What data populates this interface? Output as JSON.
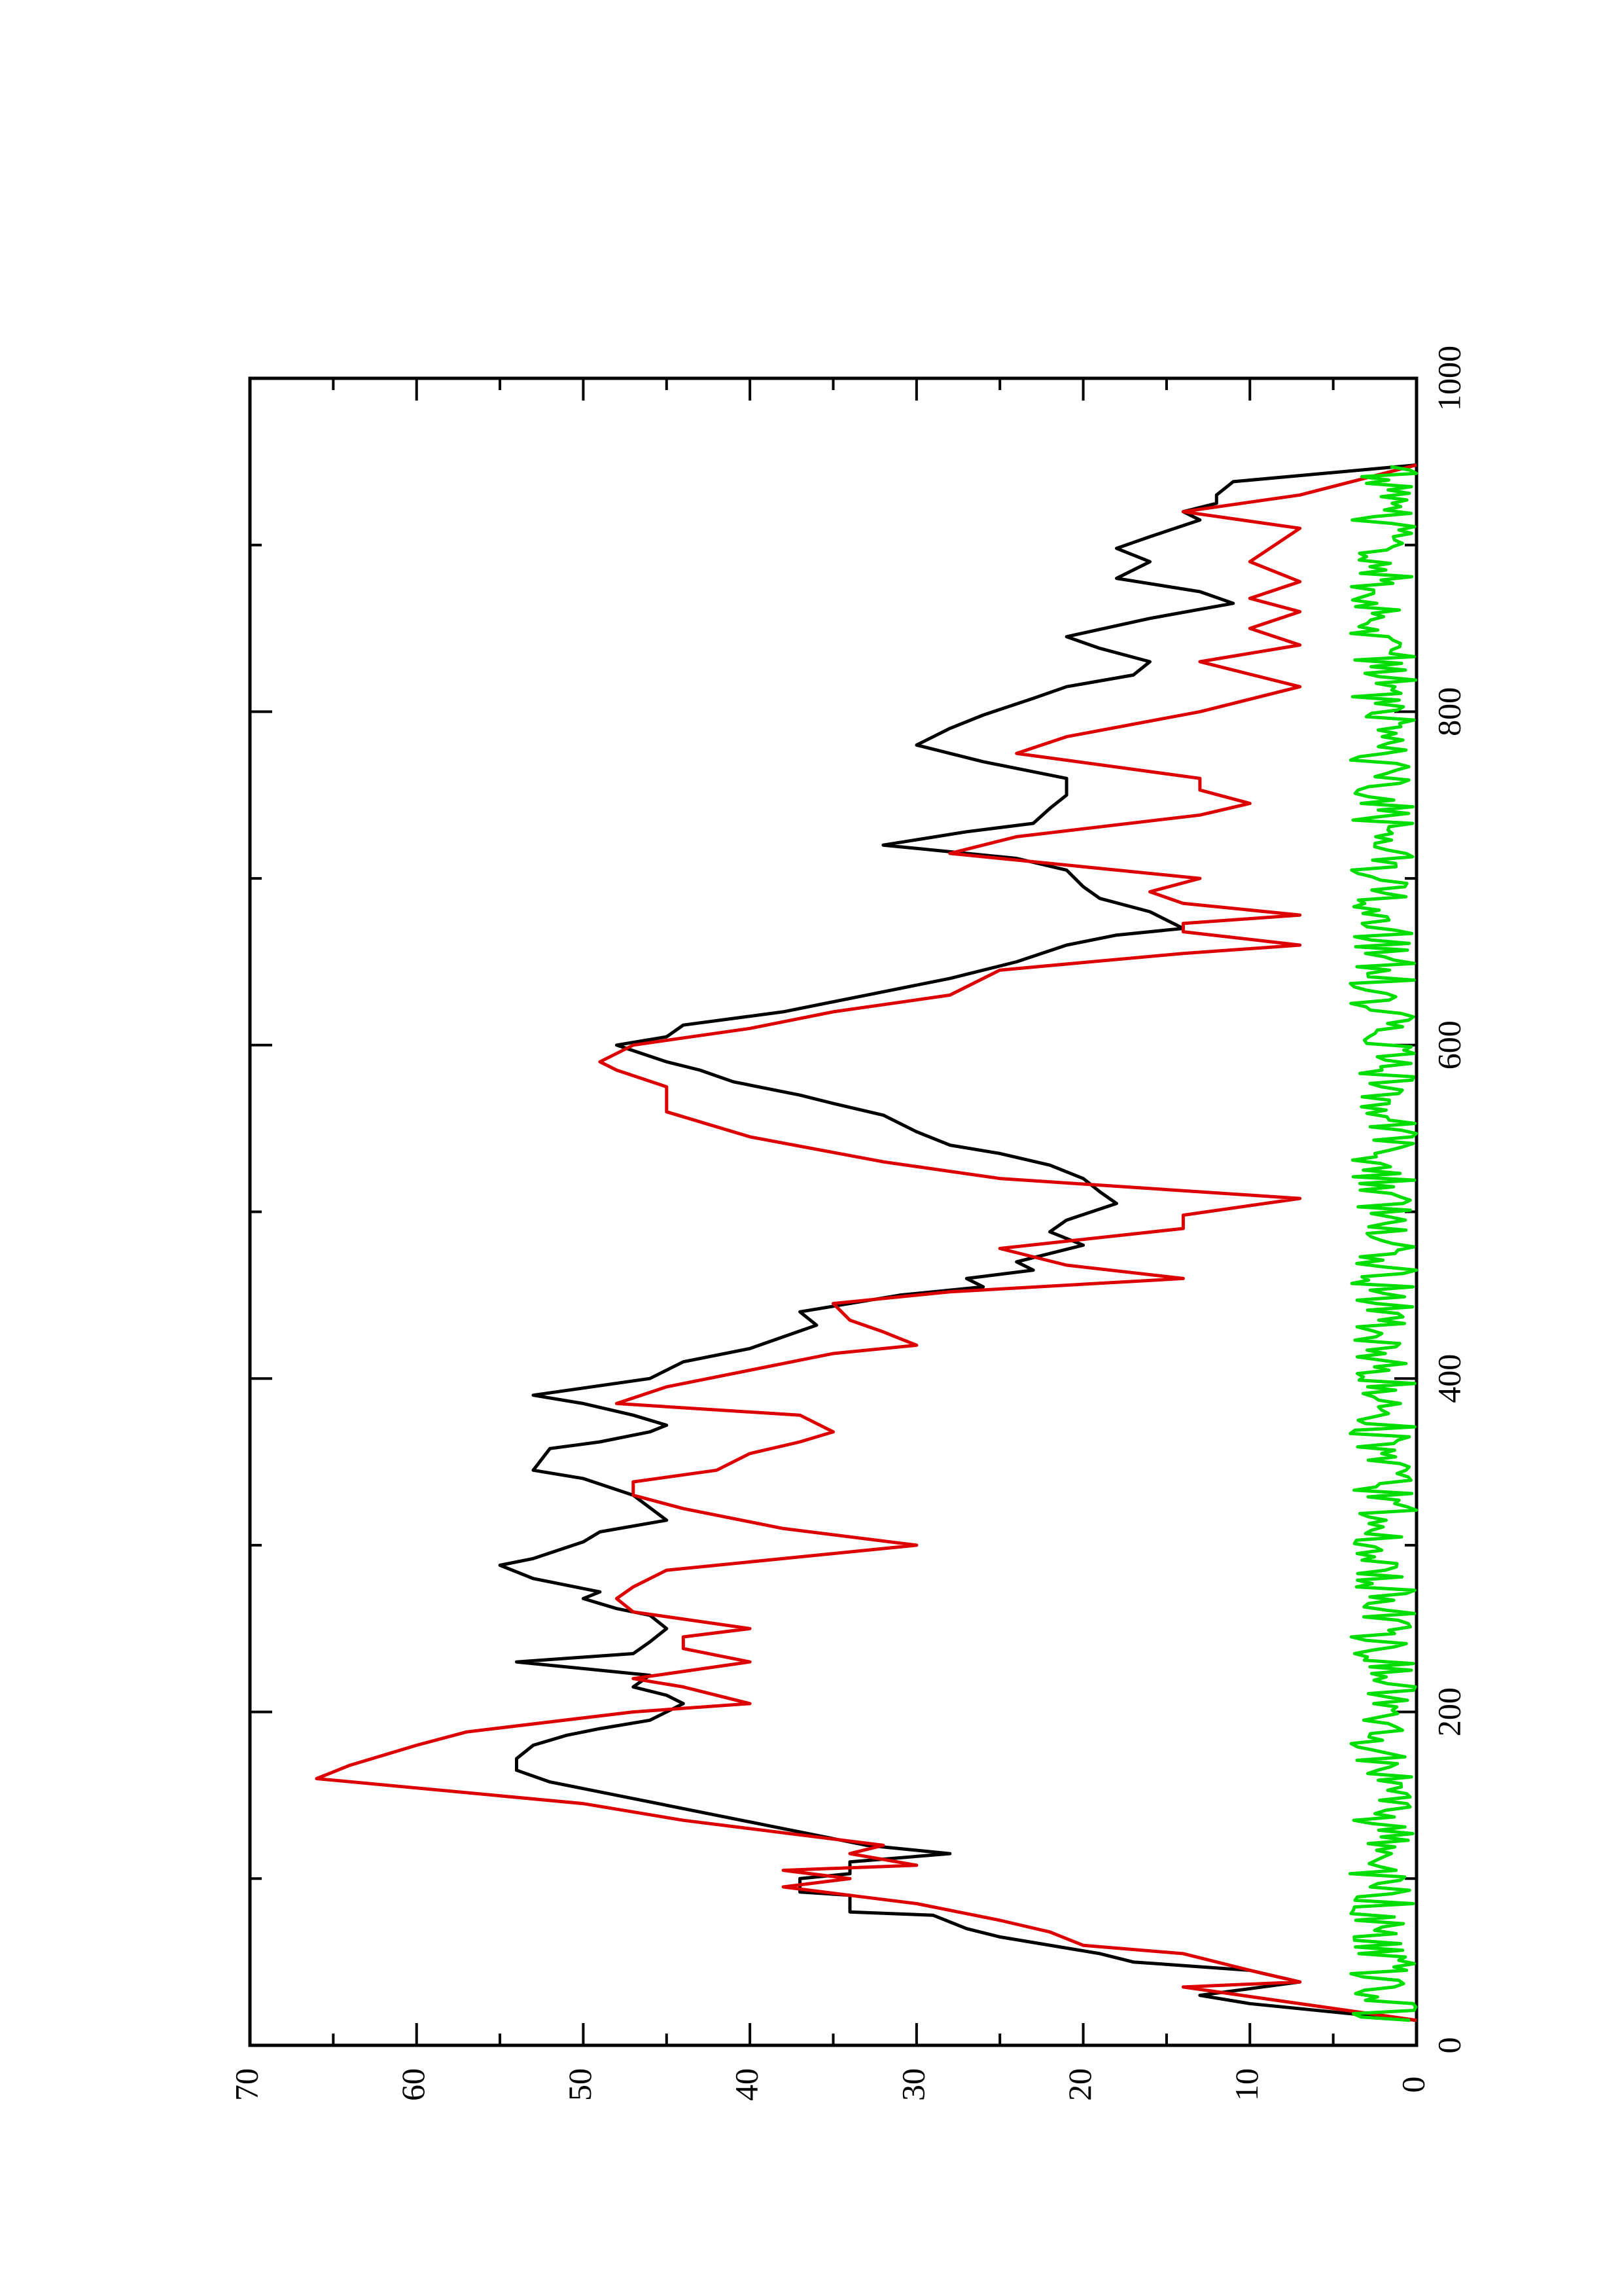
{
  "chart_data": {
    "type": "line",
    "title": "",
    "xlabel": "",
    "ylabel": "",
    "xlim": [
      0,
      1000
    ],
    "ylim": [
      0,
      70
    ],
    "x_ticks": [
      0,
      200,
      400,
      600,
      800,
      1000
    ],
    "y_ticks": [
      0,
      10,
      20,
      30,
      40,
      50,
      60,
      70
    ],
    "x_tick_labels": [
      "0",
      "200",
      "400",
      "600",
      "800",
      "1000"
    ],
    "y_tick_labels": [
      "0",
      "10",
      "20",
      "30",
      "40",
      "50",
      "60",
      "70"
    ],
    "grid": false,
    "legend": "none",
    "orientation": "rotated-90-counterclockwise",
    "series": [
      {
        "color": "#000000",
        "points": [
          [
            15,
            0
          ],
          [
            25,
            10
          ],
          [
            30,
            13
          ],
          [
            38,
            7
          ],
          [
            45,
            10
          ],
          [
            50,
            17
          ],
          [
            55,
            19
          ],
          [
            65,
            25
          ],
          [
            70,
            27
          ],
          [
            78,
            29
          ],
          [
            80,
            34
          ],
          [
            90,
            34
          ],
          [
            92,
            37
          ],
          [
            100,
            37
          ],
          [
            103,
            34
          ],
          [
            110,
            34
          ],
          [
            115,
            28
          ],
          [
            120,
            33
          ],
          [
            130,
            38
          ],
          [
            140,
            43
          ],
          [
            150,
            48
          ],
          [
            158,
            52
          ],
          [
            165,
            54
          ],
          [
            172,
            54
          ],
          [
            180,
            53
          ],
          [
            186,
            51
          ],
          [
            190,
            49
          ],
          [
            195,
            46
          ],
          [
            205,
            44
          ],
          [
            210,
            45
          ],
          [
            215,
            47
          ],
          [
            222,
            46
          ],
          [
            230,
            54
          ],
          [
            235,
            47
          ],
          [
            242,
            46
          ],
          [
            250,
            45
          ],
          [
            258,
            46
          ],
          [
            262,
            48
          ],
          [
            268,
            50
          ],
          [
            272,
            49
          ],
          [
            280,
            53
          ],
          [
            288,
            55
          ],
          [
            292,
            53
          ],
          [
            302,
            50
          ],
          [
            308,
            49
          ],
          [
            315,
            45
          ],
          [
            330,
            47
          ],
          [
            340,
            50
          ],
          [
            345,
            53
          ],
          [
            358,
            52
          ],
          [
            362,
            49
          ],
          [
            368,
            46
          ],
          [
            372,
            45
          ],
          [
            378,
            47
          ],
          [
            385,
            50
          ],
          [
            390,
            53
          ],
          [
            400,
            46
          ],
          [
            410,
            44
          ],
          [
            418,
            40
          ],
          [
            425,
            38
          ],
          [
            432,
            36
          ],
          [
            440,
            37
          ],
          [
            450,
            31
          ],
          [
            455,
            26
          ],
          [
            460,
            27
          ],
          [
            465,
            23
          ],
          [
            470,
            24
          ],
          [
            480,
            20
          ],
          [
            488,
            22
          ],
          [
            495,
            21
          ],
          [
            505,
            18
          ],
          [
            512,
            19
          ],
          [
            520,
            20
          ],
          [
            528,
            22
          ],
          [
            535,
            25
          ],
          [
            540,
            28
          ],
          [
            548,
            30
          ],
          [
            558,
            32
          ],
          [
            565,
            35
          ],
          [
            570,
            37
          ],
          [
            578,
            41
          ],
          [
            585,
            43
          ],
          [
            590,
            45
          ],
          [
            600,
            48
          ],
          [
            605,
            45
          ],
          [
            612,
            44
          ],
          [
            620,
            38
          ],
          [
            630,
            33
          ],
          [
            640,
            28
          ],
          [
            650,
            24
          ],
          [
            660,
            21
          ],
          [
            666,
            18
          ],
          [
            670,
            14
          ],
          [
            680,
            16
          ],
          [
            688,
            19
          ],
          [
            695,
            20
          ],
          [
            705,
            21
          ],
          [
            712,
            24
          ],
          [
            720,
            32
          ],
          [
            728,
            27
          ],
          [
            733,
            23
          ],
          [
            742,
            22
          ],
          [
            750,
            21
          ],
          [
            760,
            21
          ],
          [
            770,
            26
          ],
          [
            780,
            30
          ],
          [
            790,
            28
          ],
          [
            798,
            26
          ],
          [
            808,
            23
          ],
          [
            815,
            21
          ],
          [
            822,
            17
          ],
          [
            830,
            16
          ],
          [
            838,
            19
          ],
          [
            845,
            21
          ],
          [
            856,
            16
          ],
          [
            865,
            11
          ],
          [
            872,
            13
          ],
          [
            880,
            18
          ],
          [
            890,
            16
          ],
          [
            898,
            18
          ],
          [
            905,
            16
          ],
          [
            915,
            13
          ],
          [
            920,
            14
          ],
          [
            925,
            12
          ],
          [
            930,
            12
          ],
          [
            938,
            11
          ],
          [
            948,
            0
          ]
        ]
      },
      {
        "color": "#dd0000",
        "points": [
          [
            15,
            0
          ],
          [
            35,
            14
          ],
          [
            38,
            7
          ],
          [
            45,
            10
          ],
          [
            55,
            14
          ],
          [
            60,
            20
          ],
          [
            68,
            22
          ],
          [
            75,
            25
          ],
          [
            85,
            30
          ],
          [
            90,
            34
          ],
          [
            95,
            38
          ],
          [
            100,
            34
          ],
          [
            105,
            38
          ],
          [
            108,
            30
          ],
          [
            115,
            34
          ],
          [
            120,
            32
          ],
          [
            135,
            44
          ],
          [
            145,
            50
          ],
          [
            160,
            66
          ],
          [
            168,
            64
          ],
          [
            180,
            60
          ],
          [
            188,
            57
          ],
          [
            200,
            47
          ],
          [
            205,
            40
          ],
          [
            215,
            44
          ],
          [
            220,
            47
          ],
          [
            230,
            40
          ],
          [
            238,
            44
          ],
          [
            245,
            44
          ],
          [
            250,
            40
          ],
          [
            260,
            47
          ],
          [
            268,
            48
          ],
          [
            275,
            47
          ],
          [
            285,
            45
          ],
          [
            300,
            30
          ],
          [
            310,
            38
          ],
          [
            322,
            44
          ],
          [
            330,
            47
          ],
          [
            338,
            47
          ],
          [
            345,
            42
          ],
          [
            355,
            40
          ],
          [
            362,
            37
          ],
          [
            368,
            35
          ],
          [
            378,
            37
          ],
          [
            385,
            48
          ],
          [
            395,
            45
          ],
          [
            405,
            40
          ],
          [
            415,
            35
          ],
          [
            420,
            30
          ],
          [
            428,
            32
          ],
          [
            435,
            34
          ],
          [
            445,
            35
          ],
          [
            452,
            28
          ],
          [
            460,
            14
          ],
          [
            468,
            21
          ],
          [
            478,
            25
          ],
          [
            490,
            14
          ],
          [
            498,
            14
          ],
          [
            508,
            7
          ],
          [
            520,
            25
          ],
          [
            530,
            32
          ],
          [
            545,
            40
          ],
          [
            560,
            45
          ],
          [
            575,
            45
          ],
          [
            585,
            48
          ],
          [
            590,
            49
          ],
          [
            600,
            47
          ],
          [
            610,
            40
          ],
          [
            620,
            35
          ],
          [
            630,
            28
          ],
          [
            645,
            25
          ],
          [
            655,
            14
          ],
          [
            660,
            7
          ],
          [
            668,
            14
          ],
          [
            673,
            14
          ],
          [
            678,
            7
          ],
          [
            685,
            14
          ],
          [
            692,
            16
          ],
          [
            700,
            13
          ],
          [
            715,
            28
          ],
          [
            725,
            24
          ],
          [
            738,
            13
          ],
          [
            745,
            10
          ],
          [
            753,
            13
          ],
          [
            760,
            13
          ],
          [
            775,
            24
          ],
          [
            785,
            21
          ],
          [
            800,
            13
          ],
          [
            815,
            7
          ],
          [
            830,
            13
          ],
          [
            840,
            7
          ],
          [
            850,
            10
          ],
          [
            860,
            7
          ],
          [
            868,
            10
          ],
          [
            878,
            7
          ],
          [
            890,
            10
          ],
          [
            910,
            7
          ],
          [
            920,
            14
          ],
          [
            930,
            7
          ],
          [
            948,
            0
          ]
        ]
      },
      {
        "color": "#00dd00",
        "noise": true,
        "x_range": [
          15,
          948
        ],
        "y_range": [
          0,
          4
        ]
      }
    ]
  }
}
